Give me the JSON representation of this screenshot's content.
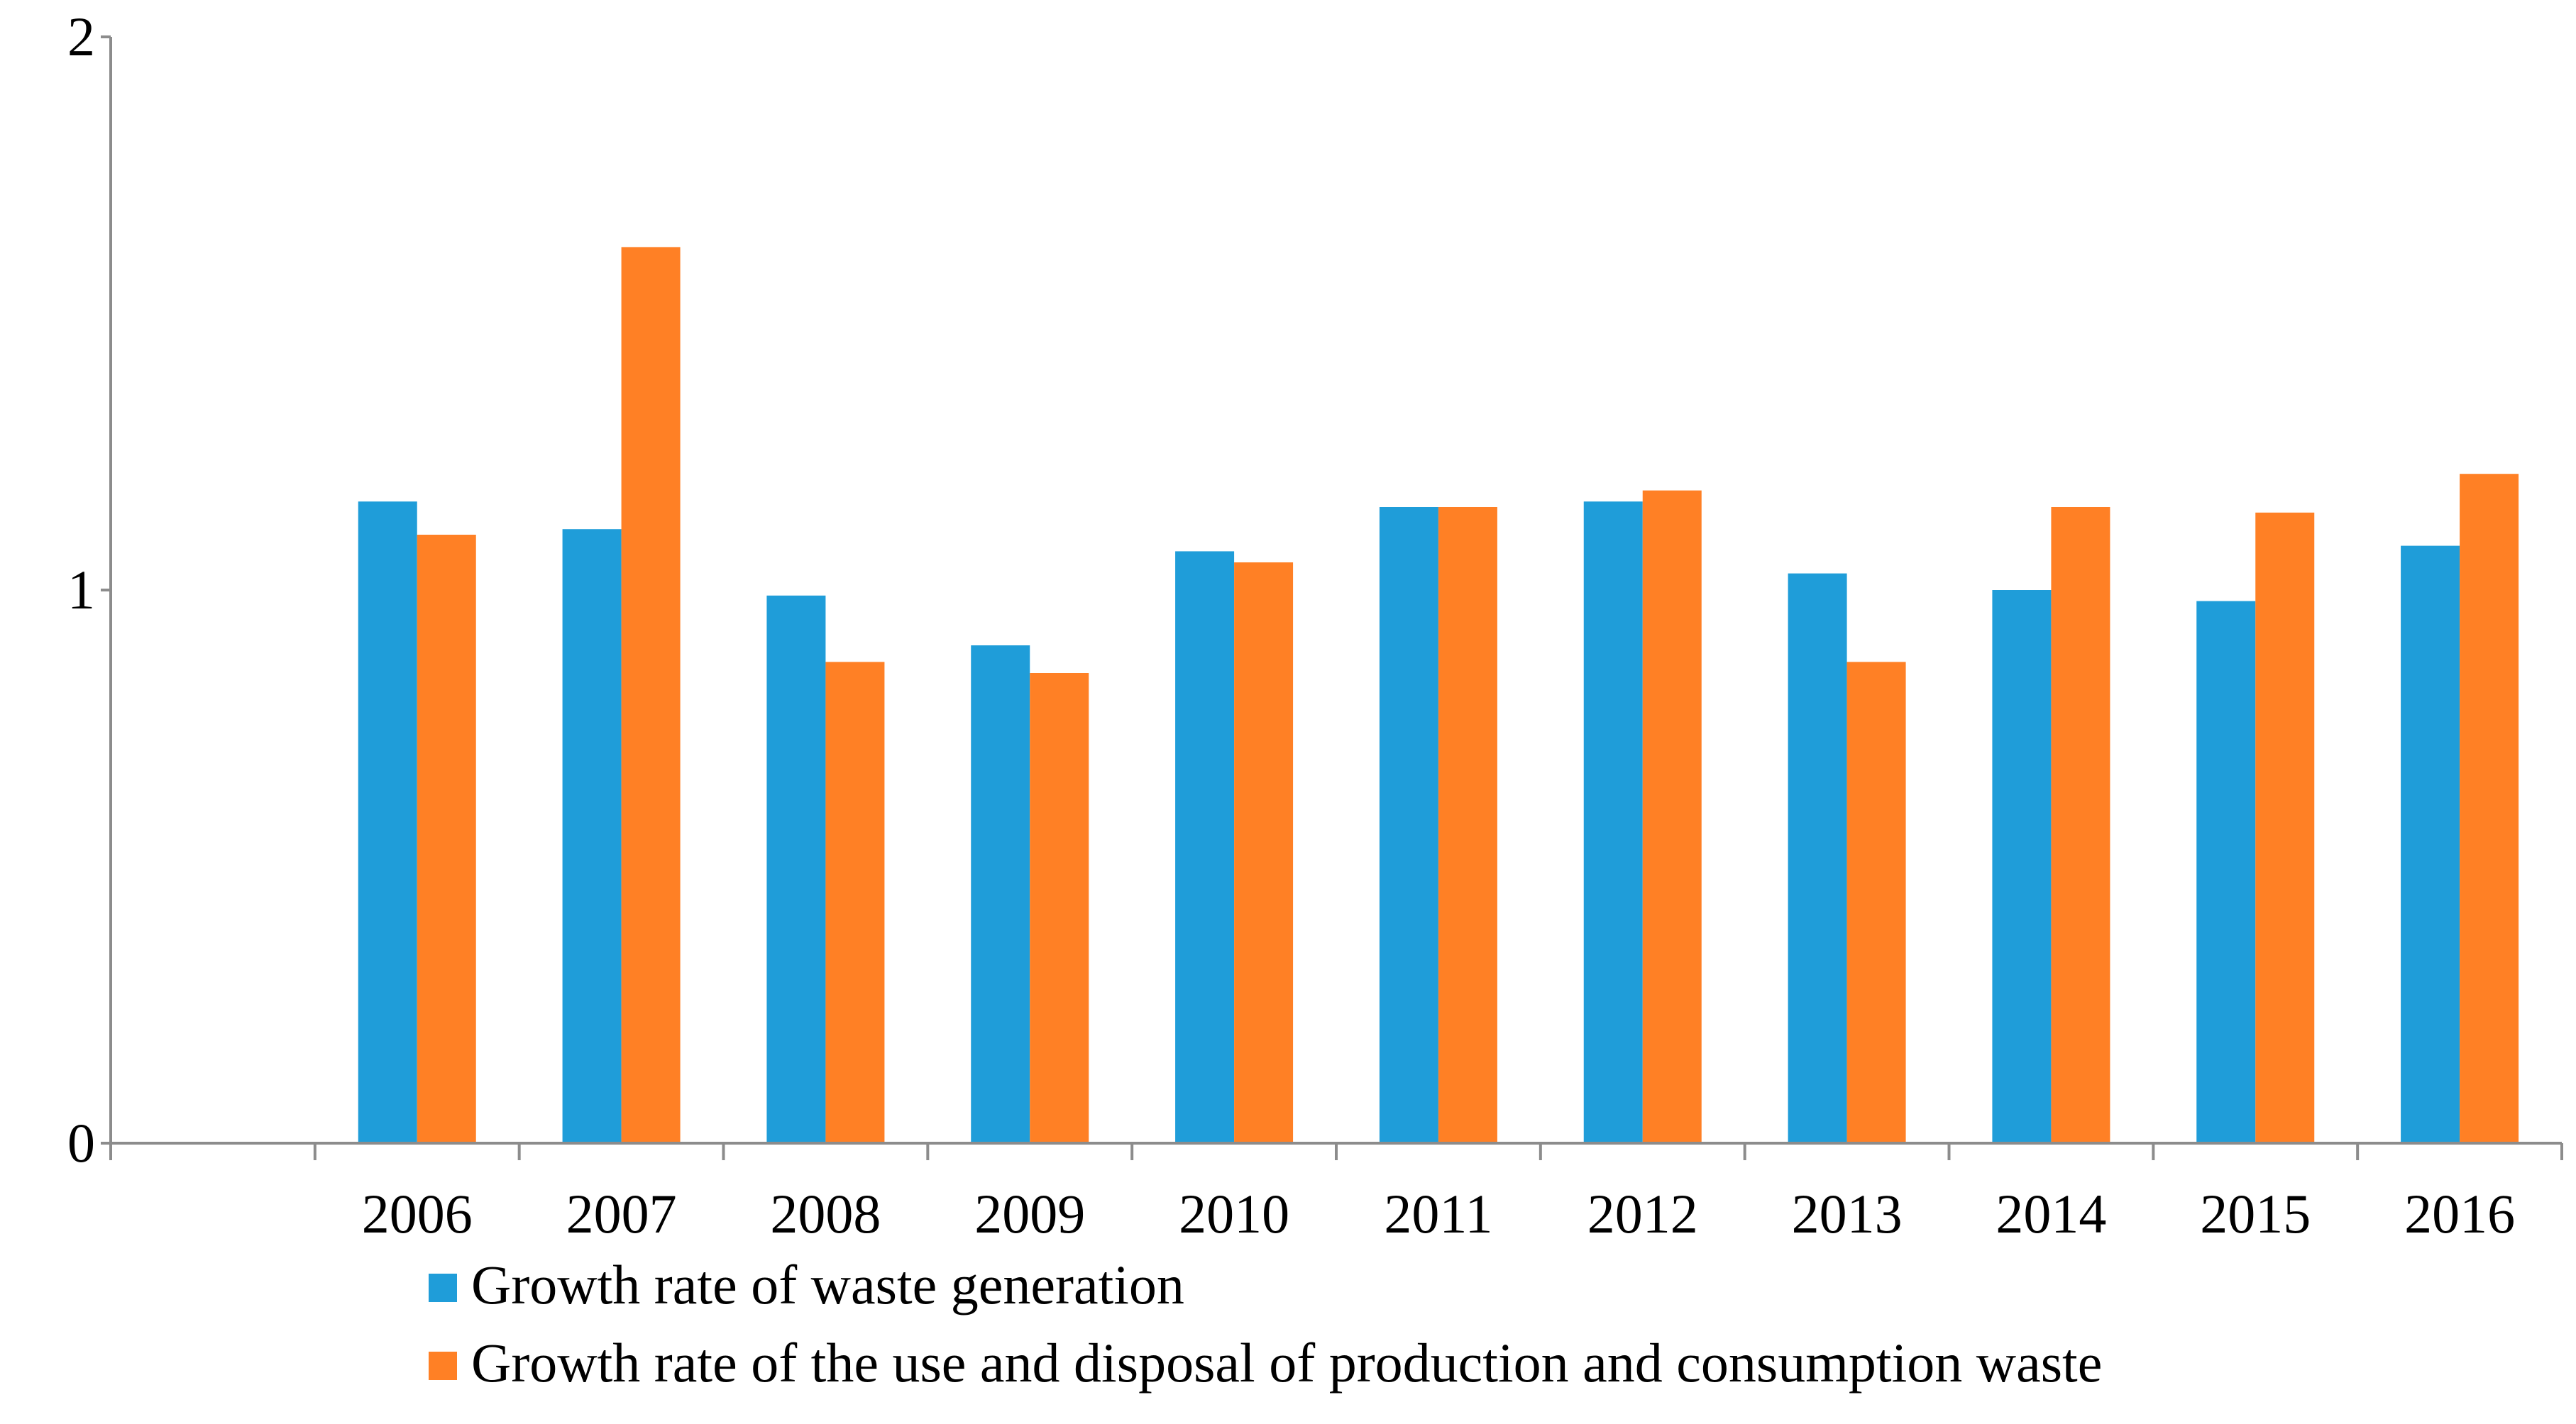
{
  "chart_data": {
    "type": "bar",
    "title": "",
    "xlabel": "",
    "ylabel": "",
    "categories": [
      "",
      "2006",
      "2007",
      "2008",
      "2009",
      "2010",
      "2011",
      "2012",
      "2013",
      "2014",
      "2015",
      "2016"
    ],
    "ylim": [
      0,
      2
    ],
    "yticks": [
      "0",
      "1",
      "2"
    ],
    "grid": false,
    "legend_position": "bottom",
    "series": [
      {
        "name": "Growth rate of waste generation",
        "color": "#1F9DD9",
        "values": [
          null,
          1.16,
          1.11,
          0.99,
          0.9,
          1.07,
          1.15,
          1.16,
          1.03,
          1.0,
          0.98,
          1.08
        ]
      },
      {
        "name": "Growth rate of the use and disposal of production and consumption waste",
        "color": "#FF8025",
        "values": [
          null,
          1.1,
          1.62,
          0.87,
          0.85,
          1.05,
          1.15,
          1.18,
          0.87,
          1.15,
          1.14,
          1.21
        ]
      }
    ]
  }
}
